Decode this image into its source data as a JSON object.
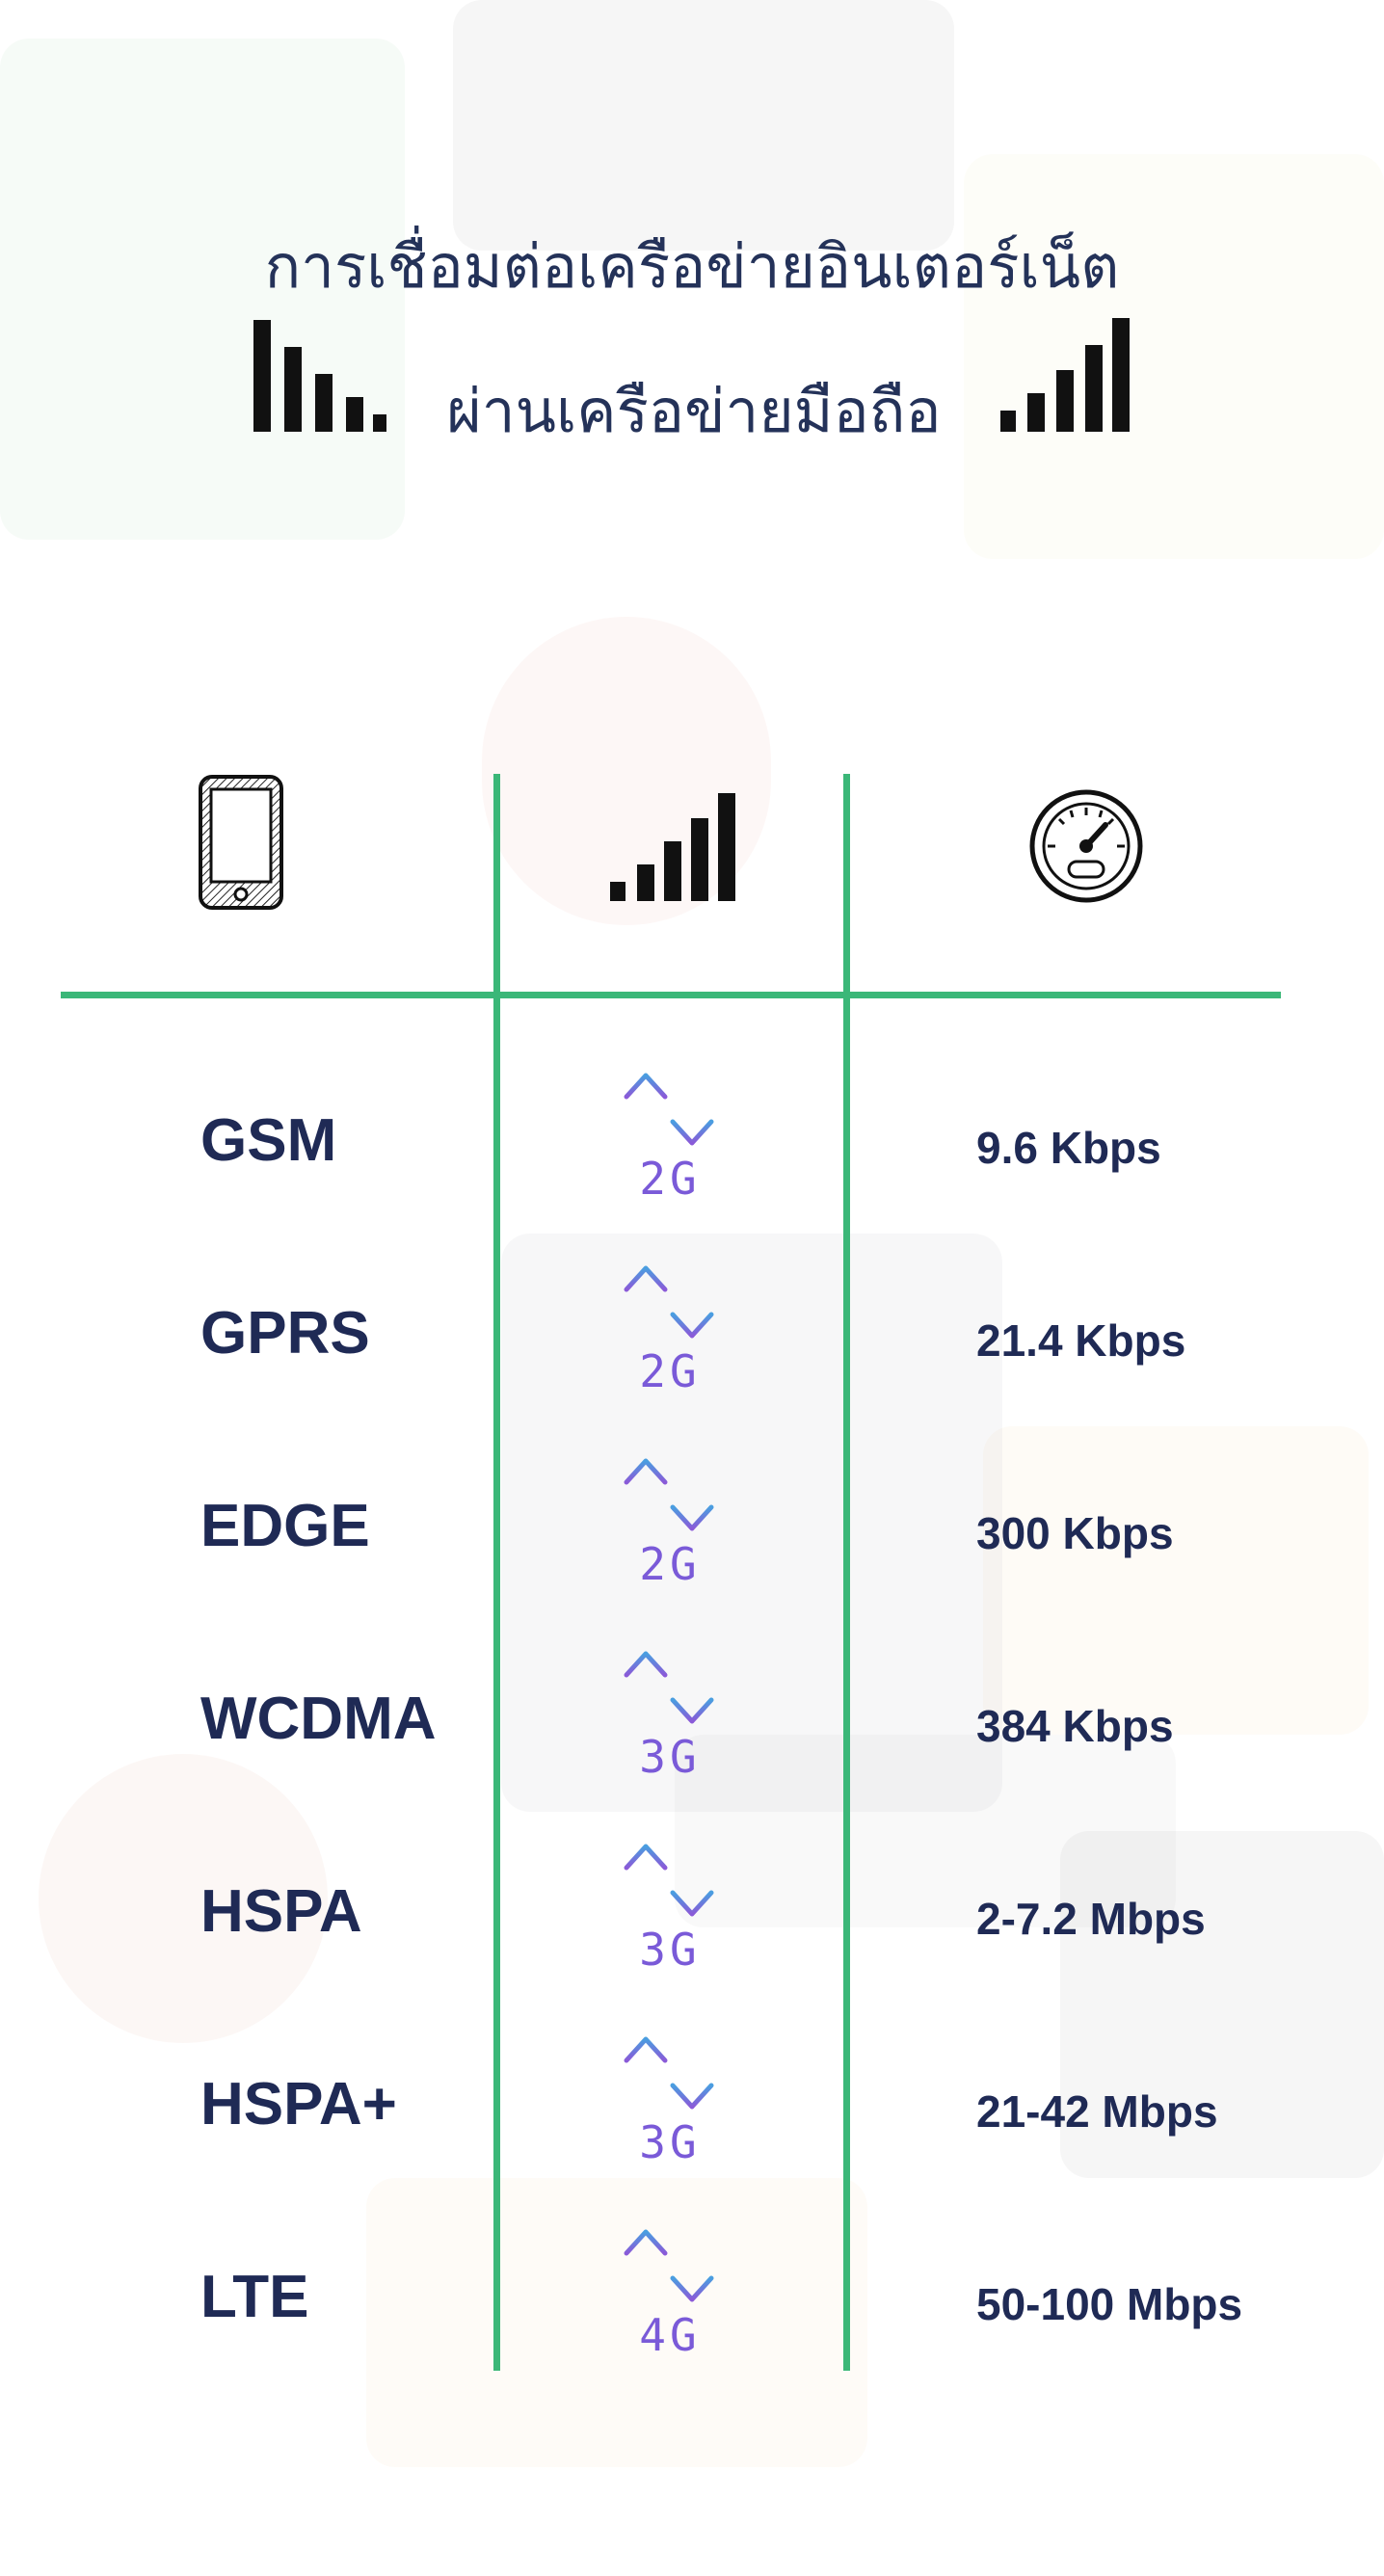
{
  "header": {
    "title_line1": "การเชื่อมต่อเครือข่ายอินเตอร์เน็ต",
    "title_line2": "ผ่านเครือข่ายมือถือ"
  },
  "columns": {
    "col1_icon": "smartphone-icon",
    "col2_icon": "signal-bars-icon",
    "col3_icon": "speedometer-icon"
  },
  "rows": [
    {
      "tech": "GSM",
      "gen": "2G",
      "speed": "9.6 Kbps"
    },
    {
      "tech": "GPRS",
      "gen": "2G",
      "speed": "21.4 Kbps"
    },
    {
      "tech": "EDGE",
      "gen": "2G",
      "speed": "300 Kbps"
    },
    {
      "tech": "WCDMA",
      "gen": "3G",
      "speed": "384 Kbps"
    },
    {
      "tech": "HSPA",
      "gen": "3G",
      "speed": "2-7.2 Mbps"
    },
    {
      "tech": "HSPA+",
      "gen": "3G",
      "speed": "21-42 Mbps"
    },
    {
      "tech": "LTE",
      "gen": "4G",
      "speed": "50-100 Mbps"
    }
  ],
  "colors": {
    "divider": "#3bb778",
    "text": "#1f2a55",
    "gen_gradient_top": "#4a9ee0",
    "gen_gradient_bottom": "#8a5ad8"
  }
}
